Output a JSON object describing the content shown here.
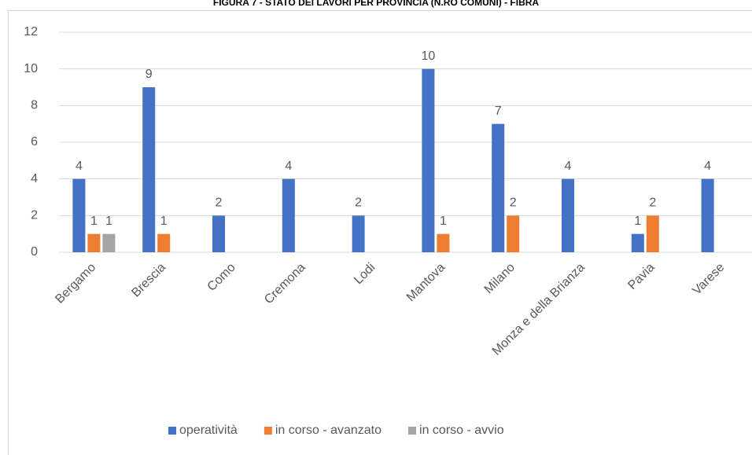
{
  "chart_data": {
    "type": "bar",
    "title": "FIGURA 7 - STATO DEI LAVORI PER PROVINCIA (N.RO COMUNI) - FIBRA",
    "categories": [
      "Bergamo",
      "Brescia",
      "Como",
      "Cremona",
      "Lodi",
      "Mantova",
      "Milano",
      "Monza e della Brianza",
      "Pavia",
      "Varese"
    ],
    "series": [
      {
        "name": "operatività",
        "color": "#4472c4",
        "values": [
          4,
          9,
          2,
          4,
          2,
          10,
          7,
          4,
          1,
          4
        ]
      },
      {
        "name": "in corso - avanzato",
        "color": "#ed7d31",
        "values": [
          1,
          1,
          null,
          null,
          null,
          1,
          2,
          null,
          2,
          null
        ]
      },
      {
        "name": "in corso - avvio",
        "color": "#a5a5a5",
        "values": [
          1,
          null,
          null,
          null,
          null,
          null,
          null,
          null,
          null,
          null
        ]
      }
    ],
    "ylim": [
      0,
      12
    ],
    "yticks": [
      0,
      2,
      4,
      6,
      8,
      10,
      12
    ],
    "grid": true,
    "legend": "bottom"
  }
}
